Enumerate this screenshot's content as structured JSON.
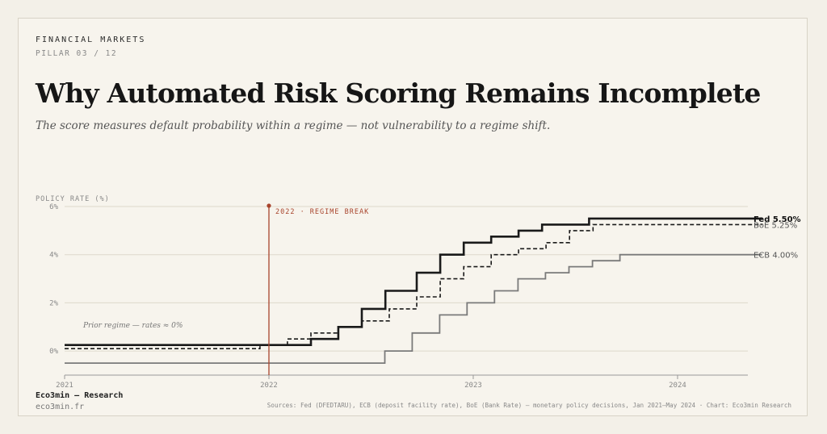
{
  "header": {
    "kicker": "FINANCIAL MARKETS",
    "pillar": "PILLAR 03 / 12",
    "title": "Why Automated Risk Scoring Remains Incomplete",
    "subtitle": "The score measures default probability within a regime — not vulnerability to a regime shift."
  },
  "footer": {
    "brand": "Eco3min — Research",
    "site": "eco3min.fr",
    "sources": "Sources: Fed (DFEDTARU), ECB (deposit facility rate), BoE (Bank Rate) — monetary policy decisions, Jan 2021–May 2024 · Chart: Eco3min Research"
  },
  "chart_data": {
    "type": "line",
    "step": true,
    "ylabel": "POLICY RATE (%)",
    "ylim": [
      -1,
      6
    ],
    "xlim": [
      "2021-01-01",
      "2024-05-31"
    ],
    "yticks": [
      {
        "value": 0,
        "label": "0%"
      },
      {
        "value": 2,
        "label": "2%"
      },
      {
        "value": 4,
        "label": "4%"
      },
      {
        "value": 6,
        "label": "6%"
      }
    ],
    "xticks": [
      {
        "value": "2021-01-01",
        "label": "2021"
      },
      {
        "value": "2022-01-01",
        "label": "2022"
      },
      {
        "value": "2023-01-01",
        "label": "2023"
      },
      {
        "value": "2024-01-01",
        "label": "2024"
      }
    ],
    "grid": "horizontal",
    "marker": {
      "date": "2022-01-01",
      "label": "2022 · REGIME BREAK",
      "color": "#a8442c"
    },
    "annotation": "Prior regime — rates ≈ 0%",
    "series": [
      {
        "id": "fed",
        "label": "Fed 5.50%",
        "color": "#1a1a1a",
        "style": "solid",
        "points": [
          [
            "2021-01-01",
            0.25
          ],
          [
            "2022-03-17",
            0.5
          ],
          [
            "2022-05-05",
            1.0
          ],
          [
            "2022-06-16",
            1.75
          ],
          [
            "2022-07-28",
            2.5
          ],
          [
            "2022-09-22",
            3.25
          ],
          [
            "2022-11-03",
            4.0
          ],
          [
            "2022-12-15",
            4.5
          ],
          [
            "2023-02-02",
            4.75
          ],
          [
            "2023-03-23",
            5.0
          ],
          [
            "2023-05-04",
            5.25
          ],
          [
            "2023-07-27",
            5.5
          ],
          [
            "2024-05-31",
            5.5
          ]
        ]
      },
      {
        "id": "boe",
        "label": "BoE 5.25%",
        "color": "#1a1a1a",
        "style": "dashed",
        "points": [
          [
            "2021-01-01",
            0.1
          ],
          [
            "2021-12-16",
            0.25
          ],
          [
            "2022-02-03",
            0.5
          ],
          [
            "2022-03-17",
            0.75
          ],
          [
            "2022-05-05",
            1.0
          ],
          [
            "2022-06-16",
            1.25
          ],
          [
            "2022-08-04",
            1.75
          ],
          [
            "2022-09-22",
            2.25
          ],
          [
            "2022-11-03",
            3.0
          ],
          [
            "2022-12-15",
            3.5
          ],
          [
            "2023-02-02",
            4.0
          ],
          [
            "2023-03-23",
            4.25
          ],
          [
            "2023-05-11",
            4.5
          ],
          [
            "2023-06-22",
            5.0
          ],
          [
            "2023-08-03",
            5.25
          ],
          [
            "2024-05-31",
            5.25
          ]
        ]
      },
      {
        "id": "ecb",
        "label": "ECB 4.00%",
        "color": "#7a7a7a",
        "style": "solid",
        "points": [
          [
            "2021-01-01",
            -0.5
          ],
          [
            "2022-07-27",
            0.0
          ],
          [
            "2022-09-14",
            0.75
          ],
          [
            "2022-11-02",
            1.5
          ],
          [
            "2022-12-21",
            2.0
          ],
          [
            "2023-02-08",
            2.5
          ],
          [
            "2023-03-22",
            3.0
          ],
          [
            "2023-05-10",
            3.25
          ],
          [
            "2023-06-21",
            3.5
          ],
          [
            "2023-08-02",
            3.75
          ],
          [
            "2023-09-20",
            4.0
          ],
          [
            "2024-05-31",
            4.0
          ]
        ]
      }
    ]
  }
}
